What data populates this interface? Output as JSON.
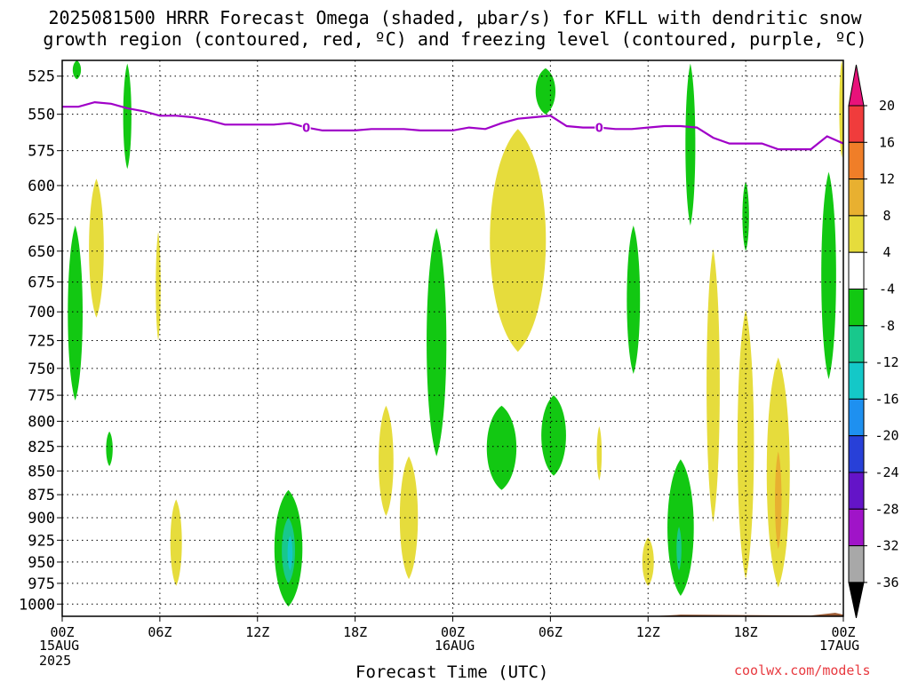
{
  "title_line1": "2025081500 HRRR Forecast Omega (shaded, μbar/s) for KFLL with dendritic snow",
  "title_line2": "growth region (contoured, red, ºC) and freezing level (contoured, purple, ºC)",
  "xlabel": "Forecast Time (UTC)",
  "credit": "coolwx.com/models",
  "date_labels": [
    {
      "line1": "15AUG",
      "line2": "2025"
    },
    {
      "line1": "16AUG",
      "line2": ""
    },
    {
      "line1": "17AUG",
      "line2": ""
    }
  ],
  "chart_data": {
    "type": "heatmap",
    "title": "2025081500 HRRR Forecast Omega (shaded, μbar/s) for KFLL with dendritic snow growth region (contoured, red, ºC) and freezing level (contoured, purple, ºC)",
    "xlabel": "Forecast Time (UTC)",
    "ylabel": "",
    "x_ticks": [
      "00Z",
      "06Z",
      "12Z",
      "18Z",
      "00Z",
      "06Z",
      "12Z",
      "18Z",
      "00Z"
    ],
    "x_tick_hours": [
      0,
      6,
      12,
      18,
      24,
      30,
      36,
      42,
      48
    ],
    "xlim": [
      0,
      48
    ],
    "y_ticks": [
      525,
      550,
      575,
      600,
      625,
      650,
      675,
      700,
      725,
      750,
      775,
      800,
      825,
      850,
      875,
      900,
      925,
      950,
      975,
      1000
    ],
    "ylim": [
      1015,
      515
    ],
    "y_scale": "log-pressure",
    "grid": true,
    "colorbar": {
      "labels": [
        "20",
        "16",
        "12",
        "8",
        "4",
        "-4",
        "-8",
        "-12",
        "-16",
        "-20",
        "-24",
        "-28",
        "-32",
        "-36"
      ],
      "bins": [
        {
          "lo": 20,
          "hi": null,
          "color": "#e8127a"
        },
        {
          "lo": 16,
          "hi": 20,
          "color": "#f03c3c"
        },
        {
          "lo": 12,
          "hi": 16,
          "color": "#f07e28"
        },
        {
          "lo": 8,
          "hi": 12,
          "color": "#e8b030"
        },
        {
          "lo": 4,
          "hi": 8,
          "color": "#e6dc3c"
        },
        {
          "lo": -4,
          "hi": 4,
          "color": "#ffffff"
        },
        {
          "lo": -8,
          "hi": -4,
          "color": "#12c812"
        },
        {
          "lo": -12,
          "hi": -8,
          "color": "#18c88c"
        },
        {
          "lo": -16,
          "hi": -12,
          "color": "#14c8c8"
        },
        {
          "lo": -20,
          "hi": -16,
          "color": "#1e90f0"
        },
        {
          "lo": -24,
          "hi": -20,
          "color": "#2840d8"
        },
        {
          "lo": -28,
          "hi": -24,
          "color": "#6414c8"
        },
        {
          "lo": -32,
          "hi": -28,
          "color": "#a014c8"
        },
        {
          "lo": -36,
          "hi": -32,
          "color": "#a8a8a8"
        },
        {
          "lo": null,
          "hi": -36,
          "color": "#000000"
        }
      ]
    },
    "omega_regions": [
      {
        "hour": 0.9,
        "p_top": 515,
        "p_bot": 527,
        "half_width_h": 0.25,
        "value": -5,
        "color": "#12c812"
      },
      {
        "hour": 4.0,
        "p_top": 517,
        "p_bot": 588,
        "half_width_h": 0.25,
        "value": -6,
        "color": "#12c812"
      },
      {
        "hour": 0.8,
        "p_top": 630,
        "p_bot": 780,
        "half_width_h": 0.45,
        "value": -6,
        "color": "#12c812"
      },
      {
        "hour": 2.1,
        "p_top": 595,
        "p_bot": 705,
        "half_width_h": 0.45,
        "value": 5,
        "color": "#e6dc3c"
      },
      {
        "hour": 2.9,
        "p_top": 810,
        "p_bot": 845,
        "half_width_h": 0.2,
        "value": -5,
        "color": "#12c812"
      },
      {
        "hour": 5.9,
        "p_top": 635,
        "p_bot": 725,
        "half_width_h": 0.15,
        "value": 5,
        "color": "#e6dc3c"
      },
      {
        "hour": 7.0,
        "p_top": 880,
        "p_bot": 978,
        "half_width_h": 0.35,
        "value": 5,
        "color": "#e6dc3c"
      },
      {
        "hour": 13.9,
        "p_top": 870,
        "p_bot": 1003,
        "half_width_h": 0.85,
        "value": -7,
        "color": "#12c812"
      },
      {
        "hour": 13.9,
        "p_top": 900,
        "p_bot": 975,
        "half_width_h": 0.4,
        "value": -10,
        "color": "#18c88c"
      },
      {
        "hour": 14.0,
        "p_top": 920,
        "p_bot": 960,
        "half_width_h": 0.15,
        "value": -13,
        "color": "#14c8c8"
      },
      {
        "hour": 19.9,
        "p_top": 785,
        "p_bot": 898,
        "half_width_h": 0.45,
        "value": 5,
        "color": "#e6dc3c"
      },
      {
        "hour": 21.3,
        "p_top": 835,
        "p_bot": 970,
        "half_width_h": 0.55,
        "value": 5,
        "color": "#e6dc3c"
      },
      {
        "hour": 23.0,
        "p_top": 632,
        "p_bot": 835,
        "half_width_h": 0.6,
        "value": -6,
        "color": "#12c812"
      },
      {
        "hour": 27.0,
        "p_top": 785,
        "p_bot": 870,
        "half_width_h": 0.9,
        "value": -6,
        "color": "#12c812"
      },
      {
        "hour": 30.2,
        "p_top": 775,
        "p_bot": 855,
        "half_width_h": 0.75,
        "value": -6,
        "color": "#12c812"
      },
      {
        "hour": 29.7,
        "p_top": 520,
        "p_bot": 550,
        "half_width_h": 0.6,
        "value": -5,
        "color": "#12c812"
      },
      {
        "hour": 28.0,
        "p_top": 560,
        "p_bot": 735,
        "half_width_h": 1.7,
        "value": 5,
        "color": "#e6dc3c"
      },
      {
        "hour": 33.0,
        "p_top": 805,
        "p_bot": 860,
        "half_width_h": 0.15,
        "value": 5,
        "color": "#e6dc3c"
      },
      {
        "hour": 35.1,
        "p_top": 630,
        "p_bot": 755,
        "half_width_h": 0.4,
        "value": -6,
        "color": "#12c812"
      },
      {
        "hour": 36.0,
        "p_top": 922,
        "p_bot": 978,
        "half_width_h": 0.35,
        "value": 5,
        "color": "#e6dc3c"
      },
      {
        "hour": 38.0,
        "p_top": 838,
        "p_bot": 990,
        "half_width_h": 0.8,
        "value": -6,
        "color": "#12c812"
      },
      {
        "hour": 37.9,
        "p_top": 910,
        "p_bot": 960,
        "half_width_h": 0.15,
        "value": -10,
        "color": "#18c88c"
      },
      {
        "hour": 38.6,
        "p_top": 517,
        "p_bot": 630,
        "half_width_h": 0.3,
        "value": -6,
        "color": "#12c812"
      },
      {
        "hour": 40.0,
        "p_top": 648,
        "p_bot": 905,
        "half_width_h": 0.4,
        "value": 5,
        "color": "#e6dc3c"
      },
      {
        "hour": 42.0,
        "p_top": 597,
        "p_bot": 650,
        "half_width_h": 0.2,
        "value": -6,
        "color": "#12c812"
      },
      {
        "hour": 42.0,
        "p_top": 698,
        "p_bot": 970,
        "half_width_h": 0.5,
        "value": 5,
        "color": "#e6dc3c"
      },
      {
        "hour": 44.0,
        "p_top": 740,
        "p_bot": 980,
        "half_width_h": 0.7,
        "value": 5,
        "color": "#e6dc3c"
      },
      {
        "hour": 44.0,
        "p_top": 830,
        "p_bot": 935,
        "half_width_h": 0.2,
        "value": 9,
        "color": "#e8b030"
      },
      {
        "hour": 47.1,
        "p_top": 590,
        "p_bot": 760,
        "half_width_h": 0.45,
        "value": -6,
        "color": "#12c812"
      },
      {
        "hour": 47.9,
        "p_top": 515,
        "p_bot": 580,
        "half_width_h": 0.15,
        "value": 5,
        "color": "#e6dc3c"
      }
    ],
    "freezing_level": {
      "label": "0",
      "color": "#a000c8",
      "hours": [
        0,
        1,
        2,
        3,
        4,
        5,
        6,
        7,
        8,
        9,
        10,
        11,
        12,
        13,
        14,
        15,
        16,
        17,
        18,
        19,
        20,
        21,
        22,
        23,
        24,
        25,
        26,
        27,
        28,
        29,
        30,
        31,
        32,
        33,
        34,
        35,
        36,
        37,
        38,
        39,
        40,
        41,
        42,
        43,
        44,
        45,
        46,
        47,
        48
      ],
      "pressure": [
        545,
        545,
        542,
        543,
        546,
        548,
        551,
        551,
        552,
        554,
        557,
        557,
        557,
        557,
        556,
        559,
        561,
        561,
        561,
        560,
        560,
        560,
        561,
        561,
        561,
        559,
        560,
        556,
        553,
        552,
        551,
        558,
        559,
        559,
        560,
        560,
        559,
        558,
        558,
        559,
        566,
        570,
        570,
        570,
        574,
        574,
        574,
        565,
        570
      ]
    },
    "terrain_surface_hpa": 1013
  }
}
